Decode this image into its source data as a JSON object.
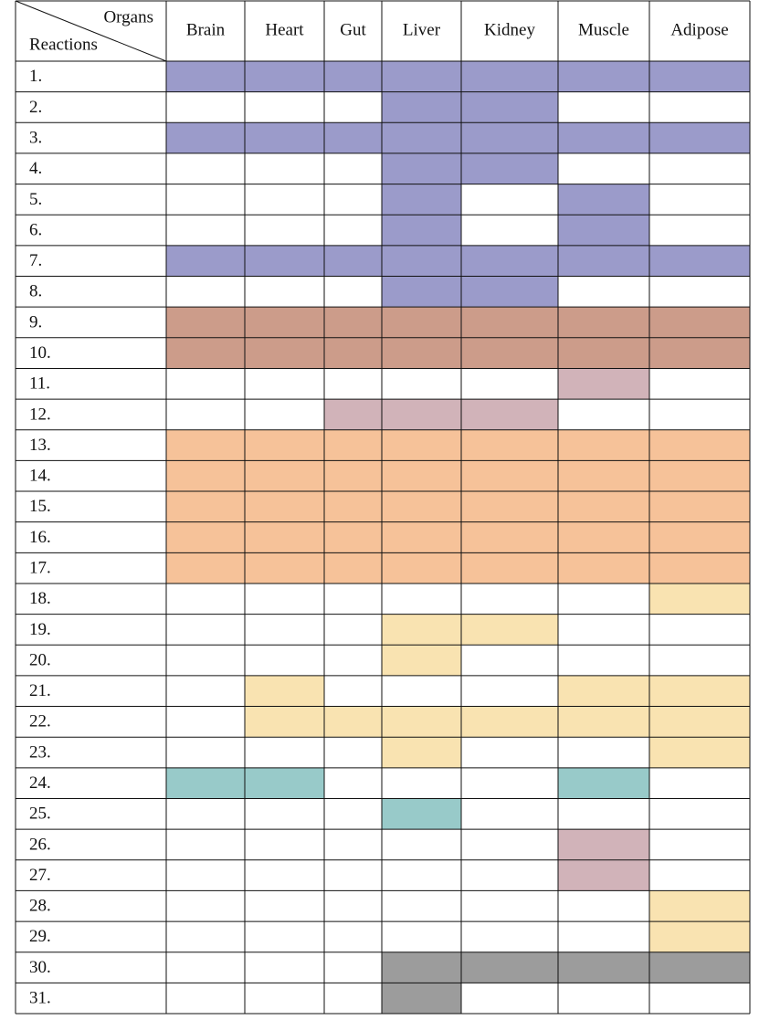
{
  "table": {
    "corner": {
      "top": "Organs",
      "bottom": "Reactions"
    },
    "columns": [
      "Brain",
      "Heart",
      "Gut",
      "Liver",
      "Kidney",
      "Muscle",
      "Adipose"
    ],
    "rows": [
      {
        "label": "1.",
        "cells": [
          "#9b9bca",
          "#9b9bca",
          "#9b9bca",
          "#9b9bca",
          "#9b9bca",
          "#9b9bca",
          "#9b9bca"
        ]
      },
      {
        "label": "2.",
        "cells": [
          null,
          null,
          null,
          "#9b9bca",
          "#9b9bca",
          null,
          null
        ]
      },
      {
        "label": "3.",
        "cells": [
          "#9b9bca",
          "#9b9bca",
          "#9b9bca",
          "#9b9bca",
          "#9b9bca",
          "#9b9bca",
          "#9b9bca"
        ]
      },
      {
        "label": "4.",
        "cells": [
          null,
          null,
          null,
          "#9b9bca",
          "#9b9bca",
          null,
          null
        ]
      },
      {
        "label": "5.",
        "cells": [
          null,
          null,
          null,
          "#9b9bca",
          null,
          "#9b9bca",
          null
        ]
      },
      {
        "label": "6.",
        "cells": [
          null,
          null,
          null,
          "#9b9bca",
          null,
          "#9b9bca",
          null
        ]
      },
      {
        "label": "7.",
        "cells": [
          "#9b9bca",
          "#9b9bca",
          "#9b9bca",
          "#9b9bca",
          "#9b9bca",
          "#9b9bca",
          "#9b9bca"
        ]
      },
      {
        "label": "8.",
        "cells": [
          null,
          null,
          null,
          "#9b9bca",
          "#9b9bca",
          null,
          null
        ]
      },
      {
        "label": "9.",
        "cells": [
          "#cc9c8a",
          "#cc9c8a",
          "#cc9c8a",
          "#cc9c8a",
          "#cc9c8a",
          "#cc9c8a",
          "#cc9c8a"
        ]
      },
      {
        "label": "10.",
        "cells": [
          "#cc9c8a",
          "#cc9c8a",
          "#cc9c8a",
          "#cc9c8a",
          "#cc9c8a",
          "#cc9c8a",
          "#cc9c8a"
        ]
      },
      {
        "label": "11.",
        "cells": [
          null,
          null,
          null,
          null,
          null,
          "#d1b3b9",
          null
        ]
      },
      {
        "label": "12.",
        "cells": [
          null,
          null,
          "#d1b3b9",
          "#d1b3b9",
          "#d1b3b9",
          null,
          null
        ]
      },
      {
        "label": "13.",
        "cells": [
          "#f6c299",
          "#f6c299",
          "#f6c299",
          "#f6c299",
          "#f6c299",
          "#f6c299",
          "#f6c299"
        ]
      },
      {
        "label": "14.",
        "cells": [
          "#f6c299",
          "#f6c299",
          "#f6c299",
          "#f6c299",
          "#f6c299",
          "#f6c299",
          "#f6c299"
        ]
      },
      {
        "label": "15.",
        "cells": [
          "#f6c299",
          "#f6c299",
          "#f6c299",
          "#f6c299",
          "#f6c299",
          "#f6c299",
          "#f6c299"
        ]
      },
      {
        "label": "16.",
        "cells": [
          "#f6c299",
          "#f6c299",
          "#f6c299",
          "#f6c299",
          "#f6c299",
          "#f6c299",
          "#f6c299"
        ]
      },
      {
        "label": "17.",
        "cells": [
          "#f6c299",
          "#f6c299",
          "#f6c299",
          "#f6c299",
          "#f6c299",
          "#f6c299",
          "#f6c299"
        ]
      },
      {
        "label": "18.",
        "cells": [
          null,
          null,
          null,
          null,
          null,
          null,
          "#f9e3b1"
        ]
      },
      {
        "label": "19.",
        "cells": [
          null,
          null,
          null,
          "#f9e3b1",
          "#f9e3b1",
          null,
          null
        ]
      },
      {
        "label": "20.",
        "cells": [
          null,
          null,
          null,
          "#f9e3b1",
          null,
          null,
          null
        ]
      },
      {
        "label": "21.",
        "cells": [
          null,
          "#f9e3b1",
          null,
          null,
          null,
          "#f9e3b1",
          "#f9e3b1"
        ]
      },
      {
        "label": "22.",
        "cells": [
          null,
          "#f9e3b1",
          "#f9e3b1",
          "#f9e3b1",
          "#f9e3b1",
          "#f9e3b1",
          "#f9e3b1"
        ]
      },
      {
        "label": "23.",
        "cells": [
          null,
          null,
          null,
          "#f9e3b1",
          null,
          null,
          "#f9e3b1"
        ]
      },
      {
        "label": "24.",
        "cells": [
          "#98cac9",
          "#98cac9",
          null,
          null,
          null,
          "#98cac9",
          null
        ]
      },
      {
        "label": "25.",
        "cells": [
          null,
          null,
          null,
          "#98cac9",
          null,
          null,
          null
        ]
      },
      {
        "label": "26.",
        "cells": [
          null,
          null,
          null,
          null,
          null,
          "#d1b3b9",
          null
        ]
      },
      {
        "label": "27.",
        "cells": [
          null,
          null,
          null,
          null,
          null,
          "#d1b3b9",
          null
        ]
      },
      {
        "label": "28.",
        "cells": [
          null,
          null,
          null,
          null,
          null,
          null,
          "#f9e3b1"
        ]
      },
      {
        "label": "29.",
        "cells": [
          null,
          null,
          null,
          null,
          null,
          null,
          "#f9e3b1"
        ]
      },
      {
        "label": "30.",
        "cells": [
          null,
          null,
          null,
          "#9c9c9c",
          "#9c9c9c",
          "#9c9c9c",
          "#9c9c9c"
        ]
      },
      {
        "label": "31.",
        "cells": [
          null,
          null,
          null,
          "#9c9c9c",
          null,
          null,
          null
        ]
      }
    ]
  }
}
